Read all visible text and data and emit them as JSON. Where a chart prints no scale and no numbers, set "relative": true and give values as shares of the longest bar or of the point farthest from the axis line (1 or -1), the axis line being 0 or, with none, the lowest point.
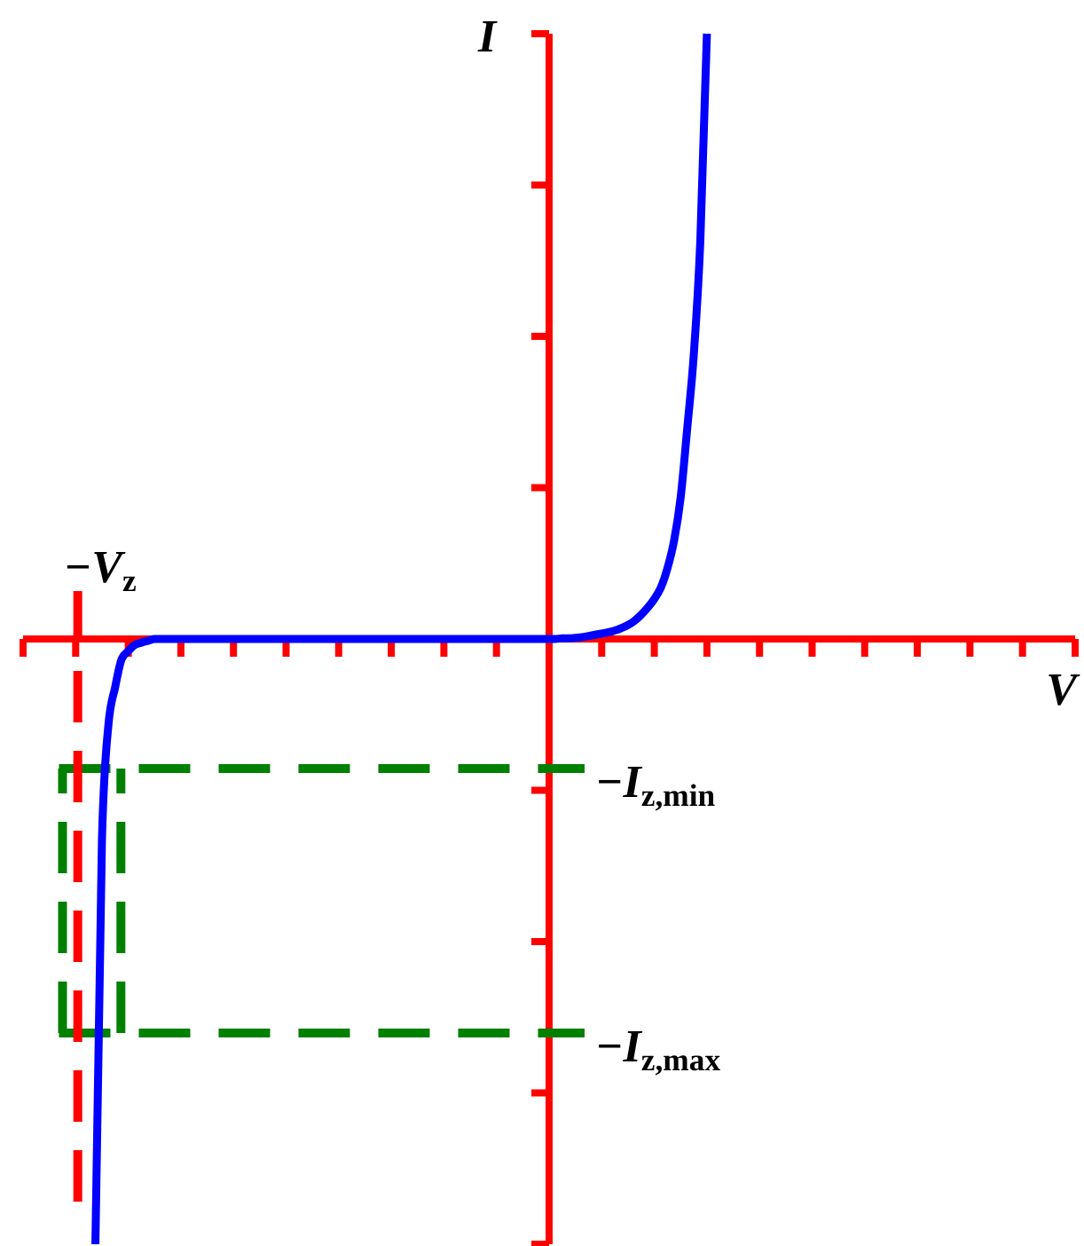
{
  "chart_data": {
    "type": "line",
    "xlabel": "V",
    "ylabel": "I",
    "relative": true,
    "categories": [
      null,
      null,
      null,
      null,
      null,
      null,
      null,
      null,
      null,
      null,
      null,
      null,
      null,
      null,
      null,
      null,
      null,
      null,
      null,
      null,
      null,
      null,
      null,
      null,
      null,
      null,
      null,
      null,
      null,
      null,
      null,
      null,
      null,
      null,
      null,
      null,
      null,
      null,
      null,
      null,
      null,
      null,
      null,
      null,
      null,
      null,
      null,
      null,
      null,
      null,
      null,
      null,
      null,
      null,
      null,
      null,
      null,
      null,
      null,
      null,
      null,
      null,
      null,
      null,
      null,
      null,
      null,
      null,
      null,
      null,
      null,
      null,
      null,
      null,
      null,
      null,
      null,
      null,
      null,
      null,
      null,
      null,
      null,
      null,
      null,
      null,
      null,
      null,
      null,
      null,
      null,
      null,
      null,
      null,
      null,
      null,
      null,
      null,
      null,
      null,
      null,
      null,
      null,
      null,
      null,
      null,
      null,
      null,
      null,
      null,
      null,
      null,
      null,
      null,
      null,
      null,
      null,
      null,
      null,
      null,
      null,
      null,
      null,
      null,
      null,
      null,
      null,
      null,
      null,
      null,
      null,
      null,
      null,
      null,
      null,
      null,
      null,
      null,
      null,
      null,
      null,
      null,
      null,
      null,
      null,
      null,
      null,
      null,
      null,
      null,
      null,
      null,
      null,
      null,
      null,
      null,
      null,
      null,
      null,
      null,
      null
    ],
    "series": [
      {
        "color": "#0000ff",
        "values": [
          null,
          null,
          null,
          null,
          null,
          null,
          null,
          null,
          null,
          null,
          null,
          -1,
          -0.33,
          -0.14,
          -0.08,
          -0.033,
          -0.02,
          -0.01,
          -0.006,
          -0.003,
          0,
          0,
          0,
          0,
          0,
          0,
          0,
          0,
          0,
          0,
          0,
          0,
          0,
          0,
          0,
          0,
          0,
          0,
          0,
          0,
          0,
          0,
          0,
          0,
          0,
          0,
          0,
          0,
          0,
          0,
          0,
          0,
          0,
          0,
          0,
          0,
          0,
          0,
          0,
          0,
          0,
          0,
          0,
          0,
          0,
          0,
          0,
          0,
          0,
          0,
          0,
          0,
          0,
          0,
          0,
          0,
          0,
          0,
          0,
          0,
          0,
          0,
          0.001,
          0.001,
          0.002,
          0.003,
          0.005,
          0.007,
          0.009,
          0.011,
          0.014,
          0.018,
          0.023,
          0.03,
          0.04,
          0.052,
          0.066,
          0.085,
          0.117,
          0.162,
          0.233,
          0.347,
          0.469,
          0.658,
          1,
          null,
          null,
          null,
          null,
          null,
          null,
          null,
          null,
          null,
          null,
          null,
          null,
          null,
          null,
          null,
          null,
          null,
          null,
          null,
          null,
          null,
          null,
          null,
          null,
          null,
          null,
          null,
          null,
          null,
          null,
          null,
          null,
          null,
          null,
          null,
          null,
          null,
          null,
          null,
          null,
          null,
          null,
          null,
          null,
          null,
          null,
          null,
          null,
          null,
          null,
          null,
          null,
          null,
          null,
          null,
          null
        ]
      }
    ],
    "ref_lines": [
      {
        "axis": "y",
        "value": 0,
        "color": "#ff0000"
      },
      {
        "axis": "y",
        "value": -0.214,
        "label": "−I$_{z,min}$",
        "color": "#008000",
        "line_style": "dashed"
      },
      {
        "axis": "y",
        "value": -0.651,
        "label": "−I$_{z,max}$",
        "color": "#008000",
        "line_style": "dashed"
      }
    ],
    "annotations": [
      "−V$_{z}$"
    ]
  }
}
